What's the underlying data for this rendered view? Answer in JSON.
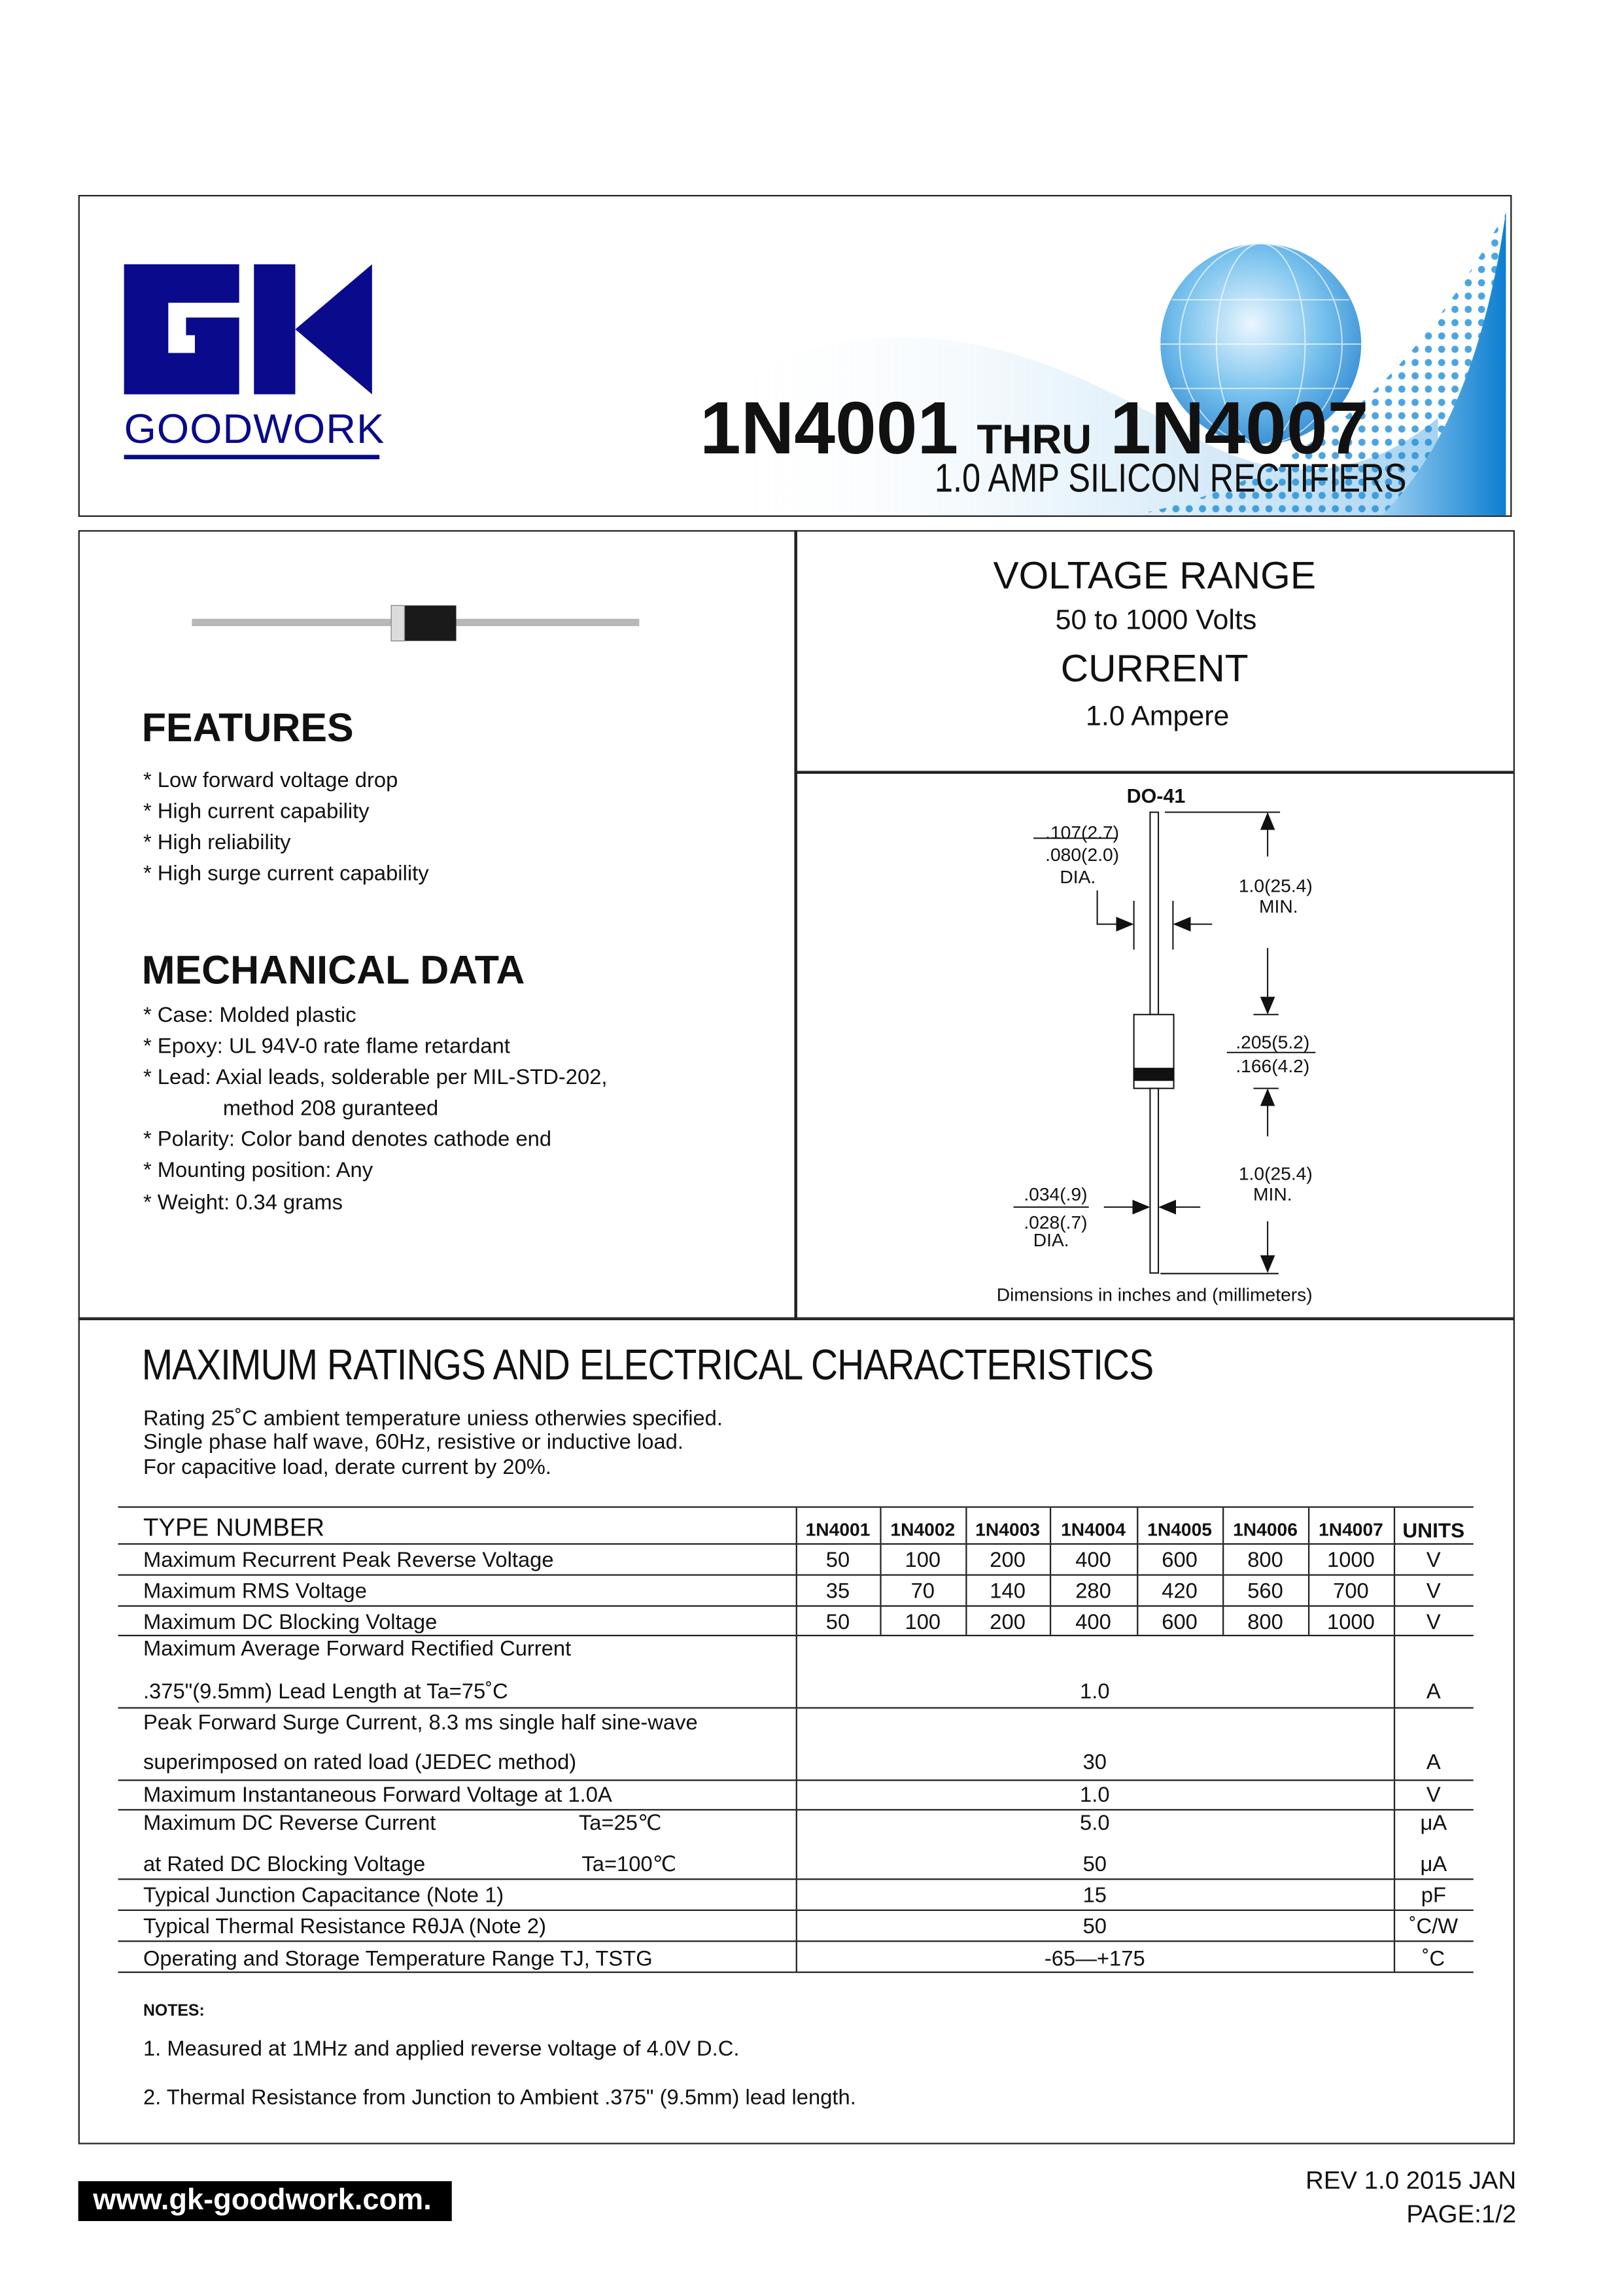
{
  "header": {
    "logo_letters": "GK",
    "logo_name": "GOODWORK",
    "title_part1": "1N4001",
    "title_thru": "THRU",
    "title_part2": "1N4007",
    "subtitle": "1.0 AMP SILICON RECTIFIERS",
    "brand_color": "#0a0a8c",
    "accent_color": "#1a8ad8"
  },
  "ratings_summary": {
    "voltage_title": "VOLTAGE RANGE",
    "voltage_value": "50 to 1000 Volts",
    "current_title": "CURRENT",
    "current_value": "1.0 Ampere"
  },
  "features": {
    "title": "FEATURES",
    "items": [
      "* Low forward voltage drop",
      "* High current capability",
      "* High reliability",
      "* High surge current capability"
    ]
  },
  "mechanical": {
    "title": "MECHANICAL DATA",
    "items": [
      "* Case: Molded plastic",
      "* Epoxy: UL 94V-0 rate flame retardant",
      "* Lead: Axial leads, solderable per MIL-STD-202,",
      "method 208 guranteed",
      "* Polarity: Color band denotes cathode end",
      "* Mounting position: Any",
      "* Weight: 0.34 grams"
    ]
  },
  "package": {
    "name": "DO-41",
    "body_dia_max": ".107(2.7)",
    "body_dia_min": ".080(2.0)",
    "dia_label": "DIA.",
    "lead_len": "1.0(25.4)",
    "min_label": "MIN.",
    "body_len_max": ".205(5.2)",
    "body_len_min": ".166(4.2)",
    "lead_dia_max": ".034(.9)",
    "lead_dia_min": ".028(.7)",
    "caption": "Dimensions in inches and (millimeters)"
  },
  "characteristics": {
    "title": "MAXIMUM RATINGS AND ELECTRICAL CHARACTERISTICS",
    "conditions": [
      "Rating 25˚C ambient temperature uniess otherwies specified.",
      "Single phase half wave, 60Hz, resistive or inductive load.",
      "For capacitive load, derate current by 20%."
    ],
    "type_header": "TYPE NUMBER",
    "types": [
      "1N4001",
      "1N4002",
      "1N4003",
      "1N4004",
      "1N4005",
      "1N4006",
      "1N4007"
    ],
    "units_header": "UNITS",
    "per_type_rows": [
      {
        "label": "Maximum Recurrent Peak Reverse Voltage",
        "values": [
          "50",
          "100",
          "200",
          "400",
          "600",
          "800",
          "1000"
        ],
        "unit": "V"
      },
      {
        "label": "Maximum RMS Voltage",
        "values": [
          "35",
          "70",
          "140",
          "280",
          "420",
          "560",
          "700"
        ],
        "unit": "V"
      },
      {
        "label": "Maximum DC Blocking Voltage",
        "values": [
          "50",
          "100",
          "200",
          "400",
          "600",
          "800",
          "1000"
        ],
        "unit": "V"
      }
    ],
    "common_rows": [
      {
        "lines": [
          "Maximum Average Forward Rectified Current",
          ".375\"(9.5mm) Lead Length at Ta=75˚C"
        ],
        "values": [
          "",
          "1.0"
        ],
        "units": [
          "",
          "A"
        ]
      },
      {
        "lines": [
          "Peak Forward Surge Current, 8.3 ms single half sine-wave",
          "superimposed on rated load (JEDEC method)"
        ],
        "values": [
          "",
          "30"
        ],
        "units": [
          "",
          "A"
        ]
      },
      {
        "lines": [
          "Maximum Instantaneous Forward Voltage at 1.0A"
        ],
        "values": [
          "1.0"
        ],
        "units": [
          "V"
        ]
      },
      {
        "lines": [
          "Maximum DC Reverse Current",
          "at Rated DC Blocking Voltage"
        ],
        "conds": [
          "Ta=25℃",
          "Ta=100℃"
        ],
        "values": [
          "5.0",
          "50"
        ],
        "units": [
          "μA",
          "μA"
        ]
      },
      {
        "lines": [
          "Typical Junction Capacitance (Note 1)"
        ],
        "values": [
          "15"
        ],
        "units": [
          "pF"
        ]
      },
      {
        "lines": [
          "Typical Thermal Resistance RθJA (Note 2)"
        ],
        "values": [
          "50"
        ],
        "units": [
          "˚C/W"
        ]
      },
      {
        "lines": [
          "Operating and Storage Temperature Range TJ, TSTG"
        ],
        "values": [
          "-65—+175"
        ],
        "units": [
          "˚C"
        ]
      }
    ],
    "notes_title": "NOTES:",
    "notes": [
      "1. Measured at 1MHz and applied reverse voltage of 4.0V D.C.",
      "2. Thermal Resistance from Junction to Ambient .375\" (9.5mm) lead length."
    ]
  },
  "footer": {
    "website": "www.gk-goodwork.com.",
    "revision": "REV 1.0 2015 JAN",
    "page": "PAGE:1/2"
  }
}
